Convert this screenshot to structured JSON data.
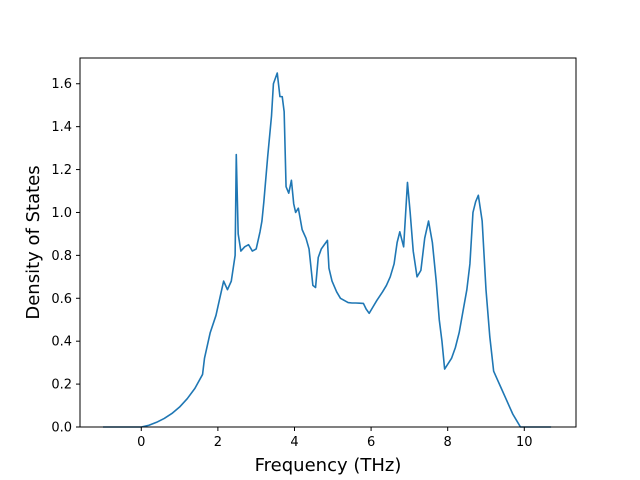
{
  "chart_data": {
    "type": "line",
    "title": "",
    "xlabel": "Frequency (THz)",
    "ylabel": "Density of States",
    "xlim": [
      -1.6,
      11.35
    ],
    "ylim": [
      0.0,
      1.72
    ],
    "xticks": [
      0,
      2,
      4,
      6,
      8,
      10
    ],
    "yticks": [
      0.0,
      0.2,
      0.4,
      0.6,
      0.8,
      1.0,
      1.2,
      1.4,
      1.6
    ],
    "xtick_labels": [
      "0",
      "2",
      "4",
      "6",
      "8",
      "10"
    ],
    "ytick_labels": [
      "0.0",
      "0.2",
      "0.4",
      "0.6",
      "0.8",
      "1.0",
      "1.2",
      "1.4",
      "1.6"
    ],
    "grid": false,
    "legend": "none",
    "series": [
      {
        "color": "#1f77b4",
        "x": [
          -1.0,
          -0.5,
          0.0,
          0.2,
          0.4,
          0.6,
          0.8,
          1.0,
          1.2,
          1.4,
          1.6,
          1.65,
          1.8,
          1.95,
          2.0,
          2.1,
          2.15,
          2.25,
          2.35,
          2.45,
          2.48,
          2.53,
          2.6,
          2.7,
          2.8,
          2.9,
          3.0,
          3.1,
          3.15,
          3.2,
          3.3,
          3.4,
          3.45,
          3.55,
          3.62,
          3.68,
          3.73,
          3.78,
          3.85,
          3.92,
          3.98,
          4.03,
          4.1,
          4.2,
          4.3,
          4.38,
          4.48,
          4.55,
          4.62,
          4.7,
          4.78,
          4.86,
          4.9,
          4.98,
          5.1,
          5.2,
          5.3,
          5.4,
          5.5,
          5.6,
          5.7,
          5.8,
          5.87,
          5.95,
          6.05,
          6.15,
          6.3,
          6.4,
          6.5,
          6.6,
          6.68,
          6.75,
          6.85,
          6.95,
          7.02,
          7.1,
          7.2,
          7.3,
          7.4,
          7.5,
          7.6,
          7.7,
          7.78,
          7.85,
          7.92,
          8.1,
          8.2,
          8.3,
          8.4,
          8.5,
          8.58,
          8.66,
          8.73,
          8.8,
          8.9,
          9.0,
          9.1,
          9.2,
          9.3,
          9.4,
          9.5,
          9.6,
          9.7,
          9.8,
          9.9,
          10.0,
          10.2,
          10.4,
          10.7
        ],
        "y": [
          0.0,
          0.0,
          0.0,
          0.008,
          0.022,
          0.04,
          0.063,
          0.093,
          0.132,
          0.18,
          0.245,
          0.32,
          0.44,
          0.52,
          0.56,
          0.64,
          0.68,
          0.64,
          0.68,
          0.8,
          1.27,
          0.9,
          0.82,
          0.84,
          0.85,
          0.82,
          0.83,
          0.91,
          0.96,
          1.05,
          1.26,
          1.45,
          1.6,
          1.65,
          1.54,
          1.54,
          1.47,
          1.12,
          1.09,
          1.15,
          1.04,
          1.0,
          1.02,
          0.92,
          0.88,
          0.83,
          0.66,
          0.65,
          0.79,
          0.83,
          0.85,
          0.87,
          0.74,
          0.68,
          0.63,
          0.6,
          0.59,
          0.58,
          0.578,
          0.578,
          0.577,
          0.576,
          0.55,
          0.53,
          0.56,
          0.59,
          0.63,
          0.66,
          0.7,
          0.76,
          0.86,
          0.91,
          0.84,
          1.14,
          1.0,
          0.82,
          0.7,
          0.73,
          0.88,
          0.96,
          0.86,
          0.68,
          0.5,
          0.4,
          0.27,
          0.32,
          0.37,
          0.44,
          0.54,
          0.64,
          0.76,
          1.0,
          1.05,
          1.08,
          0.96,
          0.64,
          0.42,
          0.26,
          0.22,
          0.18,
          0.14,
          0.1,
          0.06,
          0.03,
          0.0,
          0.0,
          0.0,
          0.0,
          0.0
        ]
      }
    ]
  }
}
